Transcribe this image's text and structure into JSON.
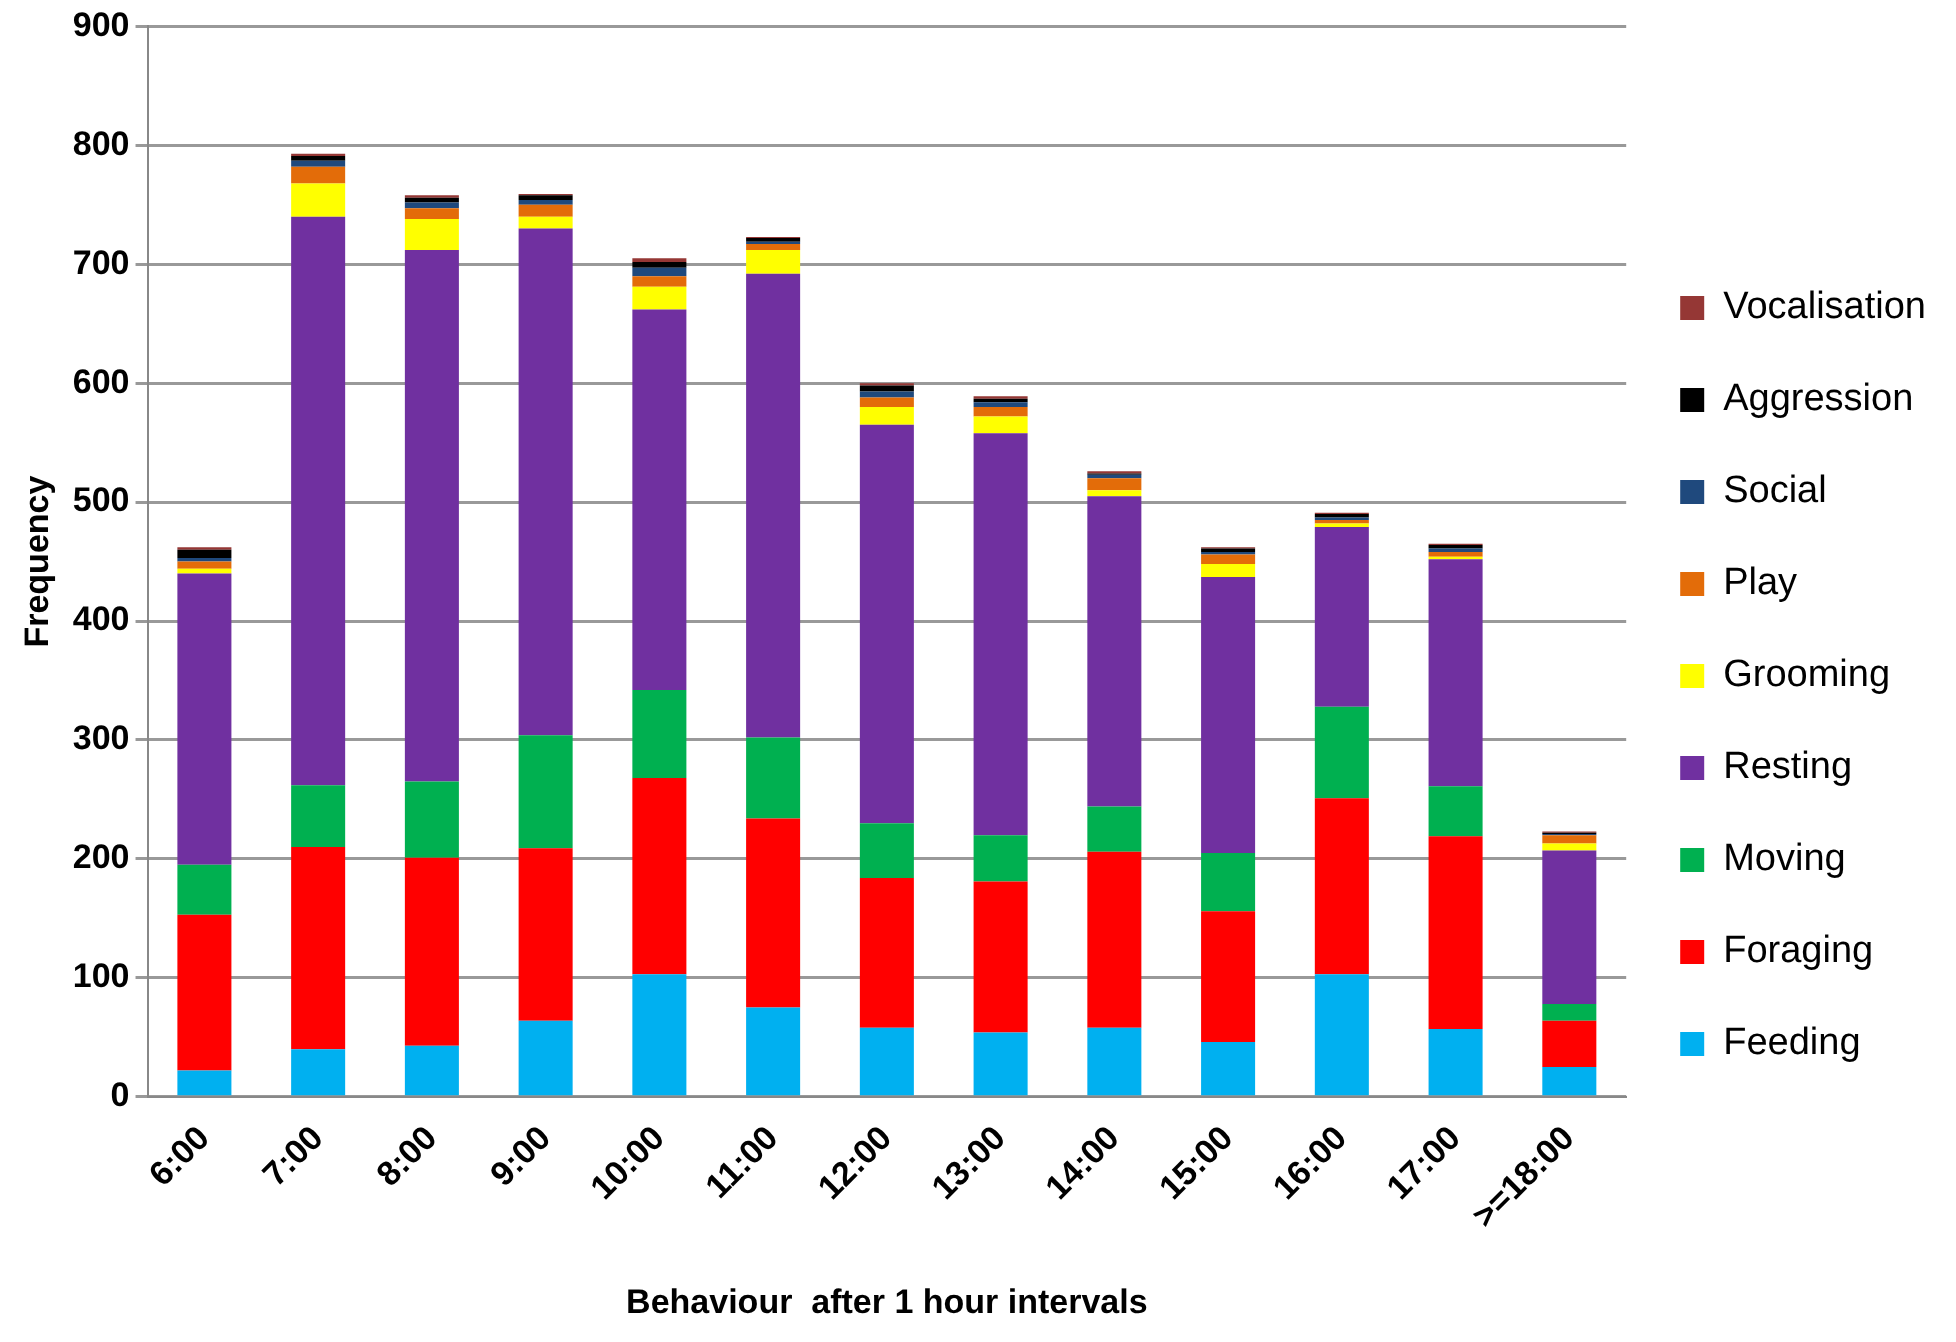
{
  "chart_data": {
    "type": "bar",
    "stacked": true,
    "xlabel": "Behaviour  after 1 hour intervals",
    "ylabel": "Frequency",
    "categories": [
      "6:00",
      "7:00",
      "8:00",
      "9:00",
      "10:00",
      "11:00",
      "12:00",
      "13:00",
      "14:00",
      "15:00",
      "16:00",
      "17:00",
      ">=18:00"
    ],
    "series": [
      {
        "name": "Feeding",
        "color": "#00b0f0",
        "values": [
          22,
          40,
          43,
          64,
          103,
          75,
          58,
          54,
          58,
          46,
          103,
          57,
          25
        ]
      },
      {
        "name": "Foraging",
        "color": "#ff0000",
        "values": [
          131,
          170,
          158,
          145,
          165,
          159,
          126,
          127,
          148,
          110,
          148,
          162,
          39
        ]
      },
      {
        "name": "Moving",
        "color": "#00b050",
        "values": [
          42,
          52,
          64,
          95,
          74,
          68,
          46,
          39,
          38,
          49,
          77,
          42,
          14
        ]
      },
      {
        "name": "Resting",
        "color": "#7030a0",
        "values": [
          245,
          478,
          447,
          426,
          320,
          390,
          335,
          338,
          261,
          232,
          151,
          191,
          129
        ]
      },
      {
        "name": "Grooming",
        "color": "#ffff00",
        "values": [
          4,
          28,
          26,
          10,
          19,
          20,
          15,
          14,
          5,
          11,
          3,
          2,
          6
        ]
      },
      {
        "name": "Play",
        "color": "#e36c09",
        "values": [
          6,
          14,
          9,
          10,
          9,
          5,
          8,
          8,
          10,
          8,
          3,
          4,
          7
        ]
      },
      {
        "name": "Social",
        "color": "#1f497d",
        "values": [
          3,
          5,
          5,
          4,
          7,
          2,
          5,
          4,
          3,
          2,
          2,
          3,
          1
        ]
      },
      {
        "name": "Aggression",
        "color": "#000000",
        "values": [
          7,
          4,
          4,
          4,
          5,
          3,
          5,
          3,
          1,
          3,
          3,
          3,
          1
        ]
      },
      {
        "name": "Vocalisation",
        "color": "#953735",
        "values": [
          2,
          2,
          2,
          1,
          3,
          1,
          2,
          2,
          2,
          1,
          1,
          1,
          1
        ]
      }
    ],
    "ylim": [
      0,
      900
    ],
    "yticks": [
      0,
      100,
      200,
      300,
      400,
      500,
      600,
      700,
      800,
      900
    ],
    "grid": "y",
    "legend": "right"
  }
}
